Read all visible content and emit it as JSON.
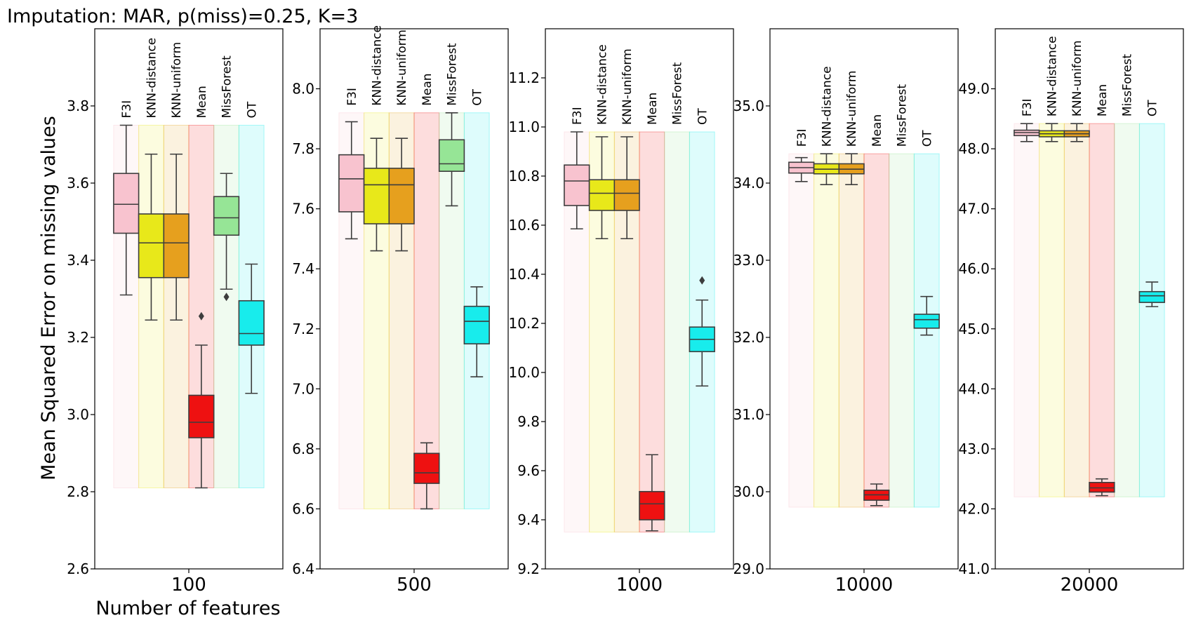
{
  "title": "Imputation: MAR, p(miss)=0.25, K=3",
  "ylabel": "Mean Squared Error on missing values",
  "xlabel": "Number of features",
  "method_colors": {
    "F3I": "#f8c3cf",
    "KNN-distance": "#e8e81a",
    "KNN-uniform": "#e6a01e",
    "Mean": "#ee1111",
    "MissForest": "#96e596",
    "OT": "#18ecec"
  },
  "chart_data": [
    {
      "type": "box",
      "x_category": "100",
      "ylim": [
        2.6,
        4.0
      ],
      "yticks": [
        "2.6",
        "2.8",
        "3.0",
        "3.2",
        "3.4",
        "3.6",
        "3.8"
      ],
      "band_range": [
        2.81,
        3.75
      ],
      "boxes": [
        {
          "method": "F3I",
          "whisker_low": 3.31,
          "q1": 3.47,
          "median": 3.545,
          "q3": 3.625,
          "whisker_high": 3.75,
          "outliers": []
        },
        {
          "method": "KNN-distance",
          "whisker_low": 3.245,
          "q1": 3.355,
          "median": 3.445,
          "q3": 3.52,
          "whisker_high": 3.675,
          "outliers": []
        },
        {
          "method": "KNN-uniform",
          "whisker_low": 3.245,
          "q1": 3.355,
          "median": 3.445,
          "q3": 3.52,
          "whisker_high": 3.675,
          "outliers": []
        },
        {
          "method": "Mean",
          "whisker_low": 2.81,
          "q1": 2.94,
          "median": 2.98,
          "q3": 3.05,
          "whisker_high": 3.18,
          "outliers": [
            3.255
          ]
        },
        {
          "method": "MissForest",
          "whisker_low": 3.325,
          "q1": 3.465,
          "median": 3.51,
          "q3": 3.565,
          "whisker_high": 3.625,
          "outliers": [
            3.305
          ]
        },
        {
          "method": "OT",
          "whisker_low": 3.055,
          "q1": 3.18,
          "median": 3.21,
          "q3": 3.295,
          "whisker_high": 3.39,
          "outliers": []
        }
      ]
    },
    {
      "type": "box",
      "x_category": "500",
      "ylim": [
        6.4,
        8.2
      ],
      "yticks": [
        "6.4",
        "6.6",
        "6.8",
        "7.0",
        "7.2",
        "7.4",
        "7.6",
        "7.8",
        "8.0"
      ],
      "band_range": [
        6.6,
        7.92
      ],
      "boxes": [
        {
          "method": "F3I",
          "whisker_low": 7.5,
          "q1": 7.59,
          "median": 7.7,
          "q3": 7.78,
          "whisker_high": 7.89,
          "outliers": []
        },
        {
          "method": "KNN-distance",
          "whisker_low": 7.46,
          "q1": 7.55,
          "median": 7.68,
          "q3": 7.735,
          "whisker_high": 7.835,
          "outliers": []
        },
        {
          "method": "KNN-uniform",
          "whisker_low": 7.46,
          "q1": 7.55,
          "median": 7.68,
          "q3": 7.735,
          "whisker_high": 7.835,
          "outliers": []
        },
        {
          "method": "Mean",
          "whisker_low": 6.6,
          "q1": 6.685,
          "median": 6.72,
          "q3": 6.785,
          "whisker_high": 6.82,
          "outliers": []
        },
        {
          "method": "MissForest",
          "whisker_low": 7.61,
          "q1": 7.725,
          "median": 7.75,
          "q3": 7.83,
          "whisker_high": 7.92,
          "outliers": []
        },
        {
          "method": "OT",
          "whisker_low": 7.04,
          "q1": 7.15,
          "median": 7.225,
          "q3": 7.275,
          "whisker_high": 7.34,
          "outliers": []
        }
      ]
    },
    {
      "type": "box",
      "x_category": "1000",
      "ylim": [
        9.2,
        11.4
      ],
      "yticks": [
        "9.2",
        "9.4",
        "9.6",
        "9.8",
        "10.0",
        "10.2",
        "10.4",
        "10.6",
        "10.8",
        "11.0",
        "11.2"
      ],
      "band_range": [
        9.35,
        10.98
      ],
      "boxes": [
        {
          "method": "F3I",
          "whisker_low": 10.585,
          "q1": 10.68,
          "median": 10.78,
          "q3": 10.845,
          "whisker_high": 10.98,
          "outliers": []
        },
        {
          "method": "KNN-distance",
          "whisker_low": 10.545,
          "q1": 10.66,
          "median": 10.73,
          "q3": 10.785,
          "whisker_high": 10.96,
          "outliers": []
        },
        {
          "method": "KNN-uniform",
          "whisker_low": 10.545,
          "q1": 10.66,
          "median": 10.73,
          "q3": 10.785,
          "whisker_high": 10.96,
          "outliers": []
        },
        {
          "method": "Mean",
          "whisker_low": 9.355,
          "q1": 9.4,
          "median": 9.465,
          "q3": 9.515,
          "whisker_high": 9.665,
          "outliers": []
        },
        {
          "method": "OT",
          "whisker_low": 9.945,
          "q1": 10.085,
          "median": 10.135,
          "q3": 10.185,
          "whisker_high": 10.295,
          "outliers": [
            10.375
          ]
        }
      ]
    },
    {
      "type": "box",
      "x_category": "10000",
      "ylim": [
        29.0,
        36.0
      ],
      "yticks": [
        "29.0",
        "30.0",
        "31.0",
        "32.0",
        "33.0",
        "34.0",
        "35.0"
      ],
      "band_range": [
        29.8,
        34.38
      ],
      "boxes": [
        {
          "method": "F3I",
          "whisker_low": 34.02,
          "q1": 34.13,
          "median": 34.2,
          "q3": 34.27,
          "whisker_high": 34.33,
          "outliers": []
        },
        {
          "method": "KNN-distance",
          "whisker_low": 33.98,
          "q1": 34.12,
          "median": 34.18,
          "q3": 34.25,
          "whisker_high": 34.38,
          "outliers": []
        },
        {
          "method": "KNN-uniform",
          "whisker_low": 33.98,
          "q1": 34.12,
          "median": 34.18,
          "q3": 34.25,
          "whisker_high": 34.38,
          "outliers": []
        },
        {
          "method": "Mean",
          "whisker_low": 29.82,
          "q1": 29.89,
          "median": 29.96,
          "q3": 30.02,
          "whisker_high": 30.1,
          "outliers": []
        },
        {
          "method": "OT",
          "whisker_low": 32.03,
          "q1": 32.12,
          "median": 32.23,
          "q3": 32.3,
          "whisker_high": 32.53,
          "outliers": []
        }
      ]
    },
    {
      "type": "box",
      "x_category": "20000",
      "ylim": [
        41.0,
        50.0
      ],
      "yticks": [
        "41.0",
        "42.0",
        "43.0",
        "44.0",
        "45.0",
        "46.0",
        "47.0",
        "48.0",
        "49.0"
      ],
      "band_range": [
        42.2,
        48.42
      ],
      "boxes": [
        {
          "method": "F3I",
          "whisker_low": 48.12,
          "q1": 48.22,
          "median": 48.27,
          "q3": 48.31,
          "whisker_high": 48.42,
          "outliers": []
        },
        {
          "method": "KNN-distance",
          "whisker_low": 48.12,
          "q1": 48.2,
          "median": 48.25,
          "q3": 48.3,
          "whisker_high": 48.42,
          "outliers": []
        },
        {
          "method": "KNN-uniform",
          "whisker_low": 48.12,
          "q1": 48.2,
          "median": 48.25,
          "q3": 48.3,
          "whisker_high": 48.42,
          "outliers": []
        },
        {
          "method": "Mean",
          "whisker_low": 42.22,
          "q1": 42.28,
          "median": 42.35,
          "q3": 42.44,
          "whisker_high": 42.5,
          "outliers": []
        },
        {
          "method": "OT",
          "whisker_low": 45.37,
          "q1": 45.44,
          "median": 45.55,
          "q3": 45.62,
          "whisker_high": 45.78,
          "outliers": []
        }
      ]
    }
  ]
}
